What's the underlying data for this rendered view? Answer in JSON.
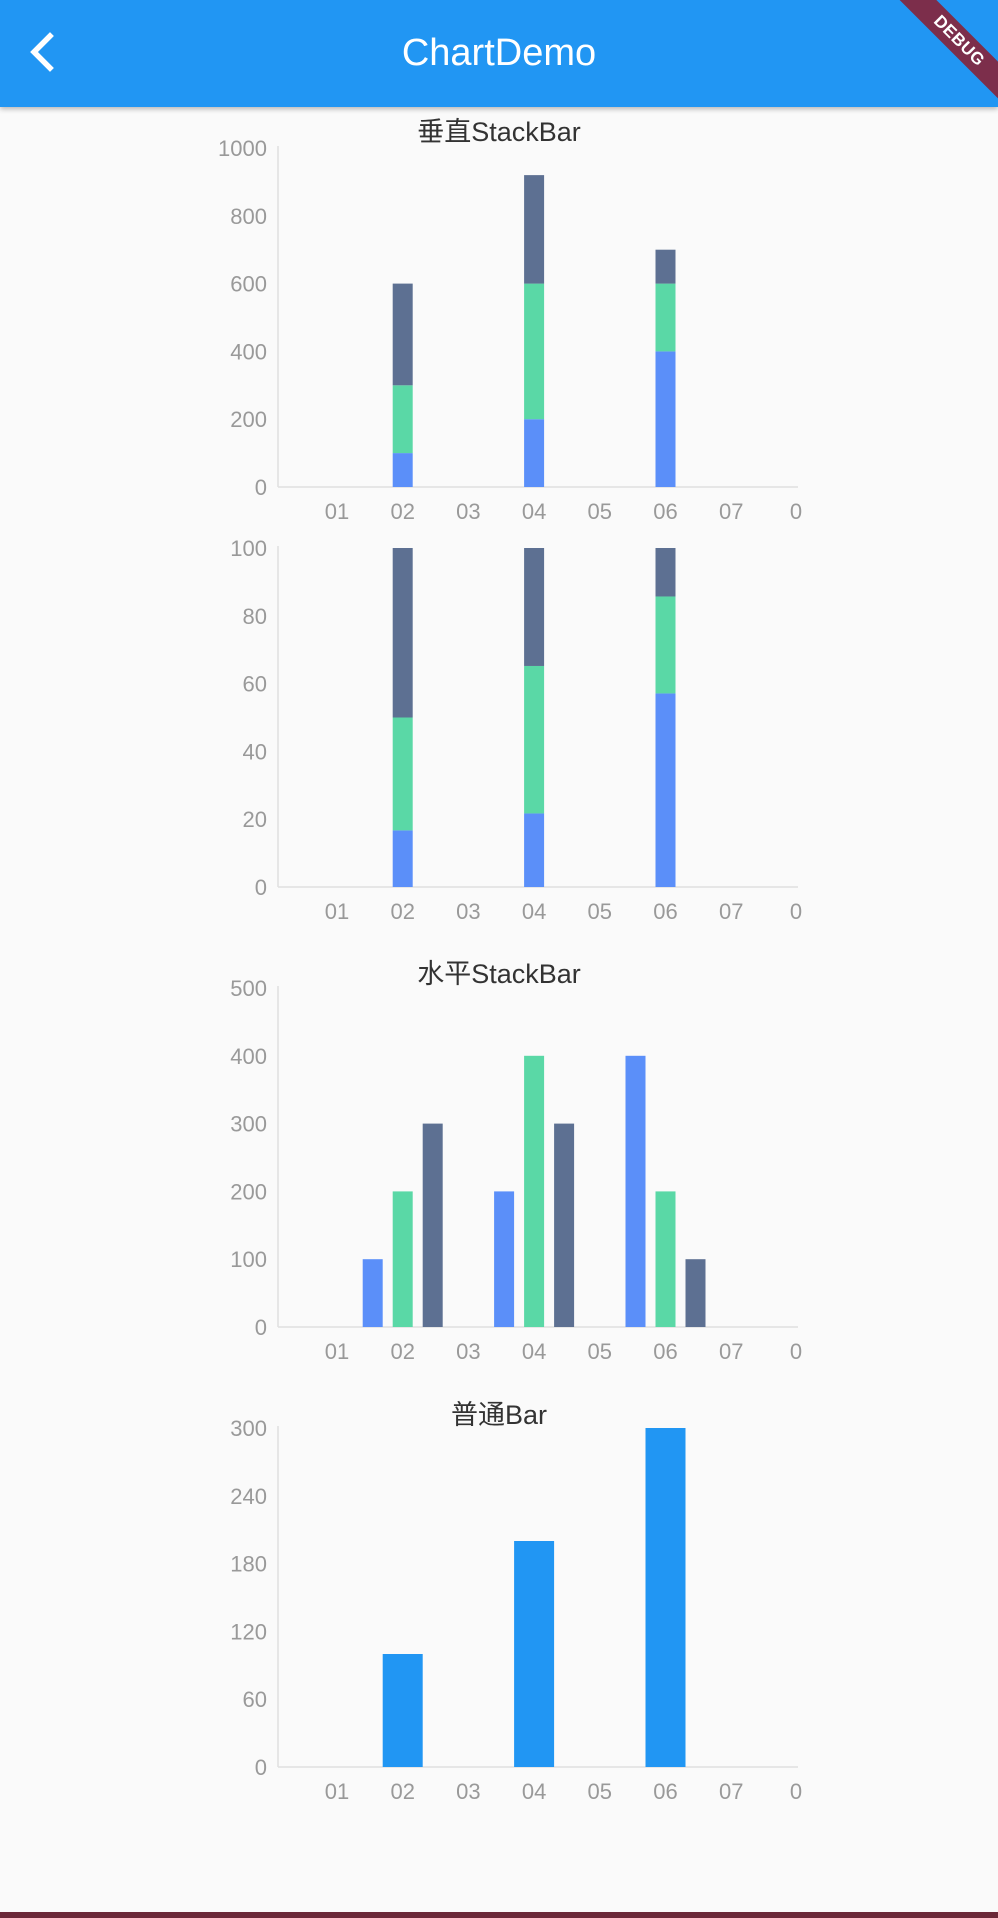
{
  "app_bar": {
    "title": "ChartDemo",
    "background_color": "#2196f3",
    "back_icon": "chevron-left-icon"
  },
  "debug_banner": {
    "label": "DEBUG",
    "color": "#7c2e4b"
  },
  "palette": {
    "blue": "#5b8ff9",
    "green": "#5ad8a6",
    "slate": "#5d7092",
    "solid": "#2196f3"
  },
  "chart_data": [
    {
      "type": "bar",
      "stacked": true,
      "title": "垂直StackBar",
      "categories": [
        "01",
        "02",
        "03",
        "04",
        "05",
        "06",
        "07",
        "0"
      ],
      "series": [
        {
          "color": "#5b8ff9",
          "values": [
            0,
            100,
            0,
            200,
            0,
            400,
            0,
            0
          ]
        },
        {
          "color": "#5ad8a6",
          "values": [
            0,
            200,
            0,
            400,
            0,
            200,
            0,
            0
          ]
        },
        {
          "color": "#5d7092",
          "values": [
            0,
            300,
            0,
            320,
            0,
            100,
            0,
            0
          ]
        }
      ],
      "y_ticks": [
        "0",
        "200",
        "400",
        "600",
        "800",
        "1000"
      ],
      "ylim": [
        0,
        1000
      ],
      "grid": false
    },
    {
      "type": "bar",
      "stacked": true,
      "percent": true,
      "title": "",
      "categories": [
        "01",
        "02",
        "03",
        "04",
        "05",
        "06",
        "07",
        "0"
      ],
      "series": [
        {
          "color": "#5b8ff9",
          "values": [
            0,
            16.7,
            0,
            21.7,
            0,
            57.1,
            0,
            0
          ]
        },
        {
          "color": "#5ad8a6",
          "values": [
            0,
            33.3,
            0,
            43.5,
            0,
            28.6,
            0,
            0
          ]
        },
        {
          "color": "#5d7092",
          "values": [
            0,
            50.0,
            0,
            34.8,
            0,
            14.3,
            0,
            0
          ]
        }
      ],
      "y_ticks": [
        "0",
        "20",
        "40",
        "60",
        "80",
        "100"
      ],
      "ylim": [
        0,
        100
      ],
      "grid": false
    },
    {
      "type": "bar",
      "grouped": true,
      "title": "水平StackBar",
      "categories": [
        "01",
        "02",
        "03",
        "04",
        "05",
        "06",
        "07",
        "0"
      ],
      "series": [
        {
          "color": "#5b8ff9",
          "values": [
            0,
            100,
            0,
            200,
            0,
            400,
            0,
            0
          ]
        },
        {
          "color": "#5ad8a6",
          "values": [
            0,
            200,
            0,
            400,
            0,
            200,
            0,
            0
          ]
        },
        {
          "color": "#5d7092",
          "values": [
            0,
            300,
            0,
            300,
            0,
            100,
            0,
            0
          ]
        }
      ],
      "y_ticks": [
        "0",
        "100",
        "200",
        "300",
        "400",
        "500"
      ],
      "ylim": [
        0,
        500
      ],
      "grid": false
    },
    {
      "type": "bar",
      "title": "普通Bar",
      "categories": [
        "01",
        "02",
        "03",
        "04",
        "05",
        "06",
        "07",
        "0"
      ],
      "series": [
        {
          "color": "#2196f3",
          "values": [
            0,
            100,
            0,
            200,
            0,
            300,
            0,
            0
          ]
        }
      ],
      "y_ticks": [
        "0",
        "60",
        "120",
        "180",
        "240",
        "300"
      ],
      "ylim": [
        0,
        300
      ],
      "grid": false
    }
  ]
}
